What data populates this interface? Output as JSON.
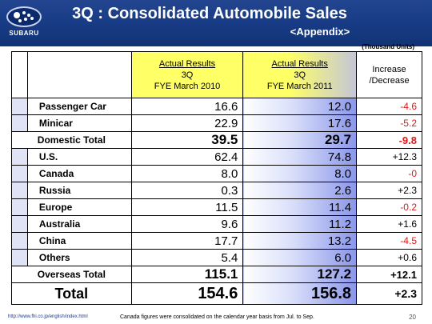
{
  "header": {
    "logo_text": "SUBARU",
    "title": "3Q : Consolidated Automobile Sales",
    "subtitle": "<Appendix>"
  },
  "units": "(Thousand Units)",
  "table": {
    "col_2010": {
      "line1": "Actual Results",
      "line2": "3Q",
      "line3": "FYE March 2010"
    },
    "col_2011": {
      "line1": "Actual Results",
      "line2": "3Q",
      "line3": "FYE March 2011"
    },
    "col_change": {
      "line1": "Increase",
      "line2": "/Decrease"
    },
    "rows": [
      {
        "label": "Passenger Car",
        "v2010": "16.6",
        "v2011": "12.0",
        "change": "-4.6"
      },
      {
        "label": "Minicar",
        "v2010": "22.9",
        "v2011": "17.6",
        "change": "-5.2"
      },
      {
        "label": "Domestic Total",
        "v2010": "39.5",
        "v2011": "29.7",
        "change": "-9.8"
      },
      {
        "label": "U.S.",
        "v2010": "62.4",
        "v2011": "74.8",
        "change": "+12.3"
      },
      {
        "label": "Canada",
        "v2010": "8.0",
        "v2011": "8.0",
        "change": "-0"
      },
      {
        "label": "Russia",
        "v2010": "0.3",
        "v2011": "2.6",
        "change": "+2.3"
      },
      {
        "label": "Europe",
        "v2010": "11.5",
        "v2011": "11.4",
        "change": "-0.2"
      },
      {
        "label": "Australia",
        "v2010": "9.6",
        "v2011": "11.2",
        "change": "+1.6"
      },
      {
        "label": "China",
        "v2010": "17.7",
        "v2011": "13.2",
        "change": "-4.5"
      },
      {
        "label": "Others",
        "v2010": "5.4",
        "v2011": "6.0",
        "change": "+0.6"
      },
      {
        "label": "Overseas Total",
        "v2010": "115.1",
        "v2011": "127.2",
        "change": "+12.1"
      },
      {
        "label": "Total",
        "v2010": "154.6",
        "v2011": "156.8",
        "change": "+2.3"
      }
    ]
  },
  "footer": {
    "url": "http://www.fhi.co.jp/english/index.html",
    "note": "Canada figures were consolidated on the calendar year basis from Jul. to Sep.",
    "page": "20"
  },
  "colors": {
    "header_blue": "#173a84",
    "negative_red": "#e01818",
    "highlight_yellow": "#ffff66"
  }
}
